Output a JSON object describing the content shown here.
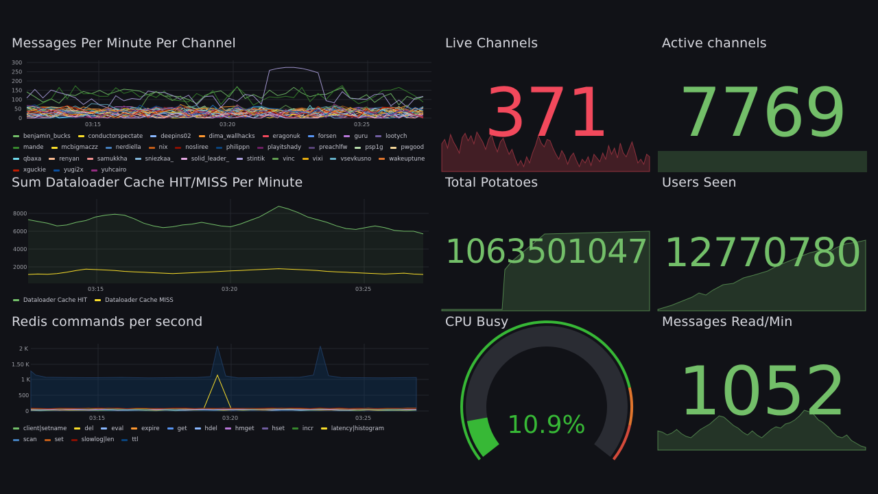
{
  "panels": {
    "messages_per_minute": {
      "title": "Messages Per Minute Per Channel",
      "y_ticks": [
        "300",
        "250",
        "200",
        "150",
        "100",
        "50",
        "0"
      ],
      "x_ticks": [
        "03:15",
        "03:20",
        "03:25"
      ],
      "legend": [
        {
          "name": "benjamin_bucks",
          "color": "#73bf69"
        },
        {
          "name": "conductorspectate",
          "color": "#fade2a"
        },
        {
          "name": "deepins02",
          "color": "#8ab8ff"
        },
        {
          "name": "dima_wallhacks",
          "color": "#ff9830"
        },
        {
          "name": "eragonuk",
          "color": "#f2495c"
        },
        {
          "name": "forsen",
          "color": "#5794f2"
        },
        {
          "name": "guru",
          "color": "#b877d9"
        },
        {
          "name": "lootych",
          "color": "#705da0"
        },
        {
          "name": "mande",
          "color": "#37872d"
        },
        {
          "name": "mcbigmaczz",
          "color": "#fade2a"
        },
        {
          "name": "nerdiella",
          "color": "#447ebc"
        },
        {
          "name": "nix",
          "color": "#c15c17"
        },
        {
          "name": "nosliree",
          "color": "#890f02"
        },
        {
          "name": "philippn",
          "color": "#0a437c"
        },
        {
          "name": "playitshady",
          "color": "#6d1f62"
        },
        {
          "name": "preachlfw",
          "color": "#584477"
        },
        {
          "name": "psp1g",
          "color": "#b7dbab"
        },
        {
          "name": "pwgood",
          "color": "#f4d598"
        },
        {
          "name": "qbaxa",
          "color": "#70dbed"
        },
        {
          "name": "renyan",
          "color": "#f9ba8f"
        },
        {
          "name": "samukkha",
          "color": "#f29191"
        },
        {
          "name": "sniezkaa_",
          "color": "#82b5d8"
        },
        {
          "name": "solid_leader_",
          "color": "#e5a8e2"
        },
        {
          "name": "stintik",
          "color": "#aea2e0"
        },
        {
          "name": "vinc",
          "color": "#629e51"
        },
        {
          "name": "vixi",
          "color": "#e5ac0e"
        },
        {
          "name": "vsevkusno",
          "color": "#64b0c8"
        },
        {
          "name": "wakeuptune",
          "color": "#e0752d"
        },
        {
          "name": "xguckie",
          "color": "#bf1b00"
        },
        {
          "name": "yugi2x",
          "color": "#0a50a1"
        },
        {
          "name": "yuhcairo",
          "color": "#962d82"
        }
      ]
    },
    "dataloader": {
      "title": "Sum Dataloader Cache HIT/MISS Per Minute",
      "y_ticks": [
        "8000",
        "6000",
        "4000",
        "2000"
      ],
      "x_ticks": [
        "03:15",
        "03:20",
        "03:25"
      ],
      "legend": [
        {
          "name": "Dataloader Cache HIT",
          "color": "#73bf69"
        },
        {
          "name": "Dataloader Cache MISS",
          "color": "#fade2a"
        }
      ]
    },
    "redis": {
      "title": "Redis commands per second",
      "y_ticks": [
        "2 K",
        "1.50 K",
        "1 K",
        "500",
        "0"
      ],
      "x_ticks": [
        "03:15",
        "03:20",
        "03:25"
      ],
      "legend": [
        {
          "name": "client|setname",
          "color": "#73bf69"
        },
        {
          "name": "del",
          "color": "#fade2a"
        },
        {
          "name": "eval",
          "color": "#8ab8ff"
        },
        {
          "name": "expire",
          "color": "#ff9830"
        },
        {
          "name": "get",
          "color": "#5794f2"
        },
        {
          "name": "hdel",
          "color": "#8ab8ff"
        },
        {
          "name": "hmget",
          "color": "#b877d9"
        },
        {
          "name": "hset",
          "color": "#705da0"
        },
        {
          "name": "incr",
          "color": "#37872d"
        },
        {
          "name": "latency|histogram",
          "color": "#fade2a"
        },
        {
          "name": "scan",
          "color": "#447ebc"
        },
        {
          "name": "set",
          "color": "#c15c17"
        },
        {
          "name": "slowlog|len",
          "color": "#890f02"
        },
        {
          "name": "ttl",
          "color": "#0a437c"
        }
      ]
    },
    "live_channels": {
      "title": "Live Channels",
      "value": "371",
      "color": "#f2495c"
    },
    "active_channels": {
      "title": "Active channels",
      "value": "7769",
      "color": "#73bf69"
    },
    "total_potatoes": {
      "title": "Total Potatoes",
      "value": "1063501047",
      "color": "#73bf69"
    },
    "users_seen": {
      "title": "Users Seen",
      "value": "12770780",
      "color": "#73bf69"
    },
    "cpu_busy": {
      "title": "CPU Busy",
      "value": "10.9%",
      "percent": 10.9,
      "color": "#37b836"
    },
    "messages_read": {
      "title": "Messages Read/Min",
      "value": "1052",
      "color": "#73bf69"
    }
  }
}
